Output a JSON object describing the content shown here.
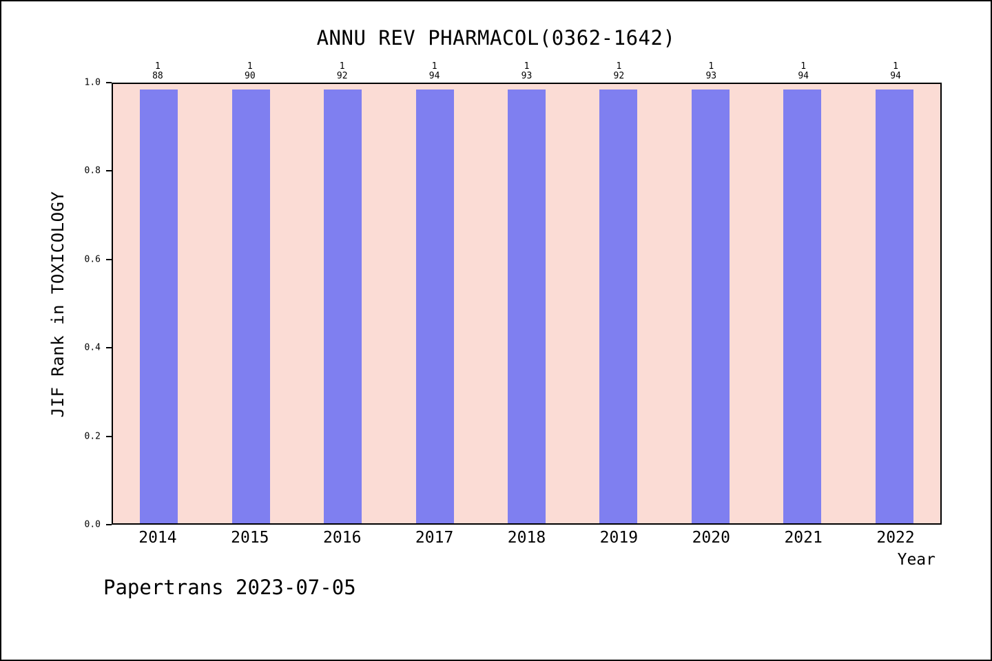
{
  "page": {
    "footer": "Papertrans 2023-07-05"
  },
  "chart_data": {
    "type": "bar",
    "title": "ANNU REV PHARMACOL(0362-1642)",
    "xlabel": "Year",
    "ylabel": "JIF Rank in TOXICOLOGY",
    "categories": [
      "2014",
      "2015",
      "2016",
      "2017",
      "2018",
      "2019",
      "2020",
      "2021",
      "2022"
    ],
    "values": [
      0.988,
      0.988,
      0.988,
      0.988,
      0.988,
      0.988,
      0.988,
      0.988,
      0.988
    ],
    "bar_labels": [
      {
        "rank": "1",
        "total": "88"
      },
      {
        "rank": "1",
        "total": "90"
      },
      {
        "rank": "1",
        "total": "92"
      },
      {
        "rank": "1",
        "total": "94"
      },
      {
        "rank": "1",
        "total": "93"
      },
      {
        "rank": "1",
        "total": "92"
      },
      {
        "rank": "1",
        "total": "93"
      },
      {
        "rank": "1",
        "total": "94"
      },
      {
        "rank": "1",
        "total": "94"
      }
    ],
    "ylim": [
      0.0,
      1.0
    ],
    "yticks": [
      0.0,
      0.2,
      0.4,
      0.6,
      0.8,
      1.0
    ],
    "grid": false,
    "legend": "none",
    "colors": {
      "bar": "#7f7ff0",
      "plot_background": "#fbdcd5",
      "axis": "#000000",
      "page_background": "#ffffff"
    }
  }
}
